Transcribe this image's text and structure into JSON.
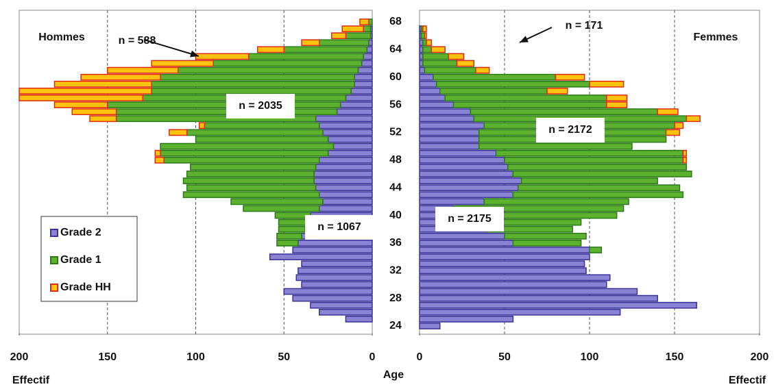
{
  "chart_data": {
    "type": "population_pyramid",
    "y_label": "Age",
    "y": [
      24,
      25,
      26,
      27,
      28,
      29,
      30,
      31,
      32,
      33,
      34,
      35,
      36,
      37,
      38,
      39,
      40,
      41,
      42,
      43,
      44,
      45,
      46,
      47,
      48,
      49,
      50,
      51,
      52,
      53,
      54,
      55,
      56,
      57,
      58,
      59,
      60,
      61,
      62,
      63,
      64,
      65,
      66,
      67,
      68
    ],
    "ylim": [
      24,
      68
    ],
    "yticks": [
      24,
      28,
      32,
      36,
      40,
      44,
      48,
      52,
      56,
      60,
      64,
      68
    ],
    "series": [
      {
        "name": "Grade 2",
        "color": "#8a82d2",
        "edge": "#3a3296"
      },
      {
        "name": "Grade 1",
        "color": "#5cb22e",
        "edge": "#2b7a18"
      },
      {
        "name": "Grade HH",
        "color": "#ffc20e",
        "edge": "#e02a10"
      }
    ],
    "grid": true,
    "panels": [
      {
        "title": "Hommes",
        "x_label": "Effectif",
        "xlim": [
          0,
          200
        ],
        "xticks": [
          0,
          50,
          100,
          150,
          200
        ],
        "values": [
          [
            0,
            15,
            30,
            35,
            45,
            50,
            40,
            43,
            42,
            40,
            58,
            45,
            42,
            40,
            38,
            35,
            35,
            30,
            28,
            30,
            32,
            33,
            33,
            32,
            30,
            25,
            22,
            25,
            28,
            30,
            32,
            20,
            18,
            15,
            12,
            10,
            10,
            8,
            6,
            5,
            3,
            2,
            1,
            1,
            0
          ],
          [
            0,
            0,
            0,
            0,
            0,
            0,
            0,
            0,
            0,
            0,
            0,
            0,
            12,
            14,
            15,
            18,
            20,
            43,
            52,
            77,
            73,
            74,
            72,
            71,
            88,
            95,
            98,
            75,
            77,
            65,
            113,
            125,
            132,
            115,
            113,
            115,
            110,
            102,
            84,
            65,
            47,
            28,
            14,
            4,
            2
          ],
          [
            0,
            0,
            0,
            0,
            0,
            0,
            0,
            0,
            0,
            0,
            0,
            0,
            0,
            0,
            0,
            0,
            0,
            0,
            0,
            0,
            0,
            0,
            0,
            0,
            5,
            3,
            0,
            0,
            10,
            3,
            15,
            25,
            30,
            70,
            75,
            55,
            45,
            40,
            35,
            30,
            15,
            10,
            8,
            12,
            5
          ]
        ],
        "annotations": [
          "n = 588",
          "n = 2035",
          "n = 1067"
        ]
      },
      {
        "title": "Femmes",
        "x_label": "Effectif",
        "xlim": [
          0,
          200
        ],
        "xticks": [
          0,
          50,
          100,
          150,
          200
        ],
        "values": [
          [
            12,
            55,
            118,
            163,
            140,
            128,
            110,
            112,
            98,
            97,
            100,
            100,
            55,
            50,
            40,
            35,
            30,
            20,
            38,
            55,
            58,
            60,
            55,
            52,
            50,
            45,
            35,
            35,
            35,
            38,
            32,
            30,
            20,
            15,
            12,
            10,
            8,
            3,
            2,
            2,
            2,
            2,
            1,
            1,
            0
          ],
          [
            0,
            0,
            0,
            0,
            0,
            0,
            0,
            0,
            0,
            0,
            0,
            7,
            40,
            48,
            50,
            60,
            86,
            100,
            85,
            100,
            95,
            80,
            105,
            105,
            105,
            110,
            90,
            110,
            110,
            112,
            125,
            110,
            90,
            95,
            63,
            90,
            72,
            30,
            20,
            15,
            5,
            2,
            2,
            1,
            0
          ],
          [
            0,
            0,
            0,
            0,
            0,
            0,
            0,
            0,
            0,
            0,
            0,
            0,
            0,
            0,
            0,
            0,
            0,
            0,
            0,
            0,
            0,
            0,
            0,
            0,
            2,
            2,
            0,
            0,
            8,
            5,
            8,
            12,
            12,
            12,
            12,
            20,
            17,
            8,
            10,
            9,
            8,
            3,
            1,
            2,
            0
          ]
        ],
        "annotations": [
          "n = 171",
          "n = 2172",
          "n = 2175"
        ]
      }
    ]
  }
}
